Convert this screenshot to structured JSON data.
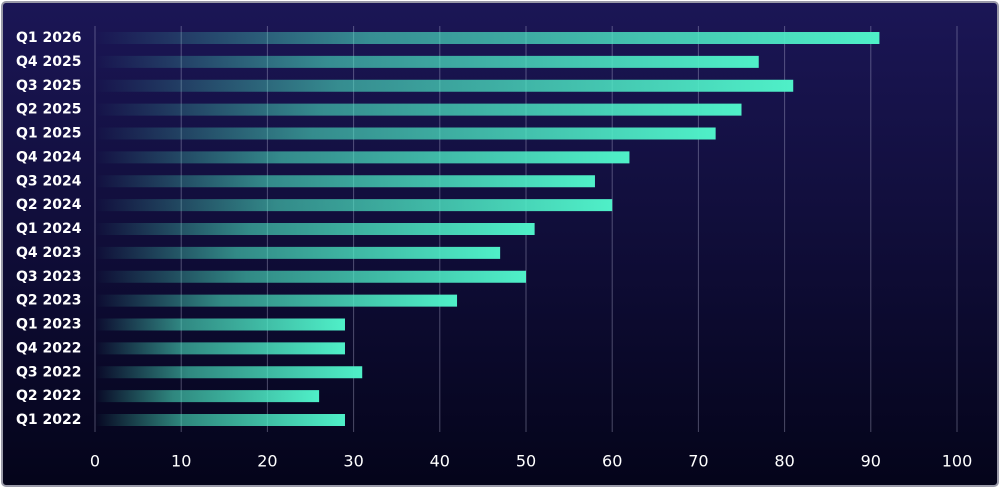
{
  "chart_data": {
    "type": "bar",
    "orientation": "horizontal",
    "categories": [
      "Q1 2026",
      "Q4 2025",
      "Q3 2025",
      "Q2 2025",
      "Q1 2025",
      "Q4 2024",
      "Q3 2024",
      "Q2 2024",
      "Q1 2024",
      "Q4 2023",
      "Q3 2023",
      "Q2 2023",
      "Q1 2023",
      "Q4 2022",
      "Q3 2022",
      "Q2 2022",
      "Q1 2022"
    ],
    "values": [
      91,
      77,
      81,
      75,
      72,
      62,
      58,
      60,
      51,
      47,
      50,
      42,
      29,
      29,
      31,
      26,
      29
    ],
    "color": "#4ff0c8",
    "xlim": [
      0,
      100
    ],
    "xticks": [
      0,
      10,
      20,
      30,
      40,
      50,
      60,
      70,
      80,
      90,
      100
    ],
    "grid": true
  }
}
